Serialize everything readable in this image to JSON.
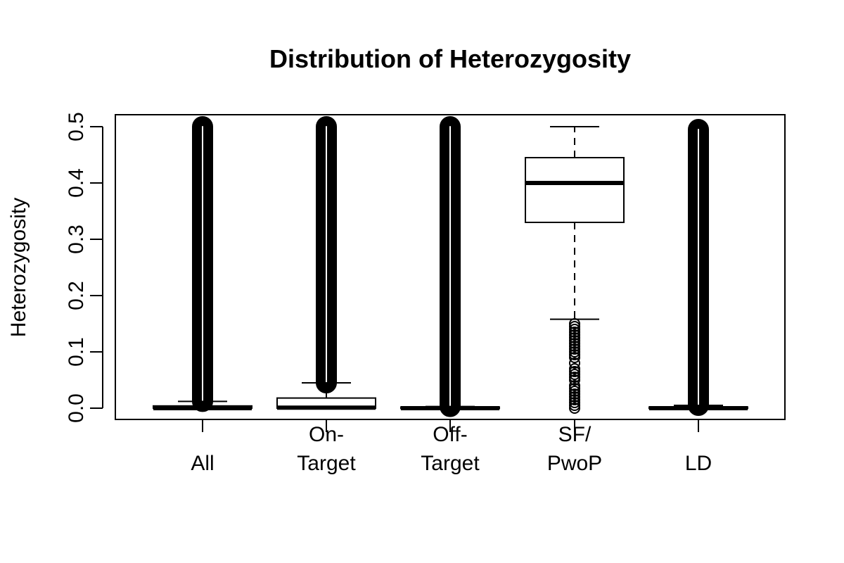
{
  "chart_data": {
    "type": "box",
    "title": "Distribution of Heterozygosity",
    "xlabel": "",
    "ylabel": "Heterozygosity",
    "ylim": [
      -0.02,
      0.52
    ],
    "yticks": [
      0.0,
      0.1,
      0.2,
      0.3,
      0.4,
      0.5
    ],
    "ytick_labels": [
      "0.0",
      "0.1",
      "0.2",
      "0.3",
      "0.4",
      "0.5"
    ],
    "grid": false,
    "legend": "none",
    "categories": [
      "All",
      "On-\nTarget",
      "Off-\nTarget",
      "SF/\nPwoP",
      "LD"
    ],
    "boxes": [
      {
        "q1": 0.0,
        "median": 0.0,
        "q3": 0.004,
        "whisker_low": 0.0,
        "whisker_high": 0.012,
        "outlier_band": [
          0.012,
          0.5
        ]
      },
      {
        "q1": 0.0,
        "median": 0.001,
        "q3": 0.018,
        "whisker_low": 0.0,
        "whisker_high": 0.045,
        "outlier_band": [
          0.045,
          0.5
        ]
      },
      {
        "q1": 0.0,
        "median": 0.0,
        "q3": 0.002,
        "whisker_low": 0.0,
        "whisker_high": 0.003,
        "outlier_band": [
          0.003,
          0.5
        ]
      },
      {
        "q1": 0.33,
        "median": 0.4,
        "q3": 0.445,
        "whisker_low": 0.158,
        "whisker_high": 0.5,
        "outliers": [
          0.0,
          0.005,
          0.01,
          0.015,
          0.02,
          0.025,
          0.03,
          0.035,
          0.04,
          0.05,
          0.055,
          0.06,
          0.065,
          0.07,
          0.08,
          0.09,
          0.095,
          0.1,
          0.105,
          0.11,
          0.115,
          0.12,
          0.125,
          0.13,
          0.135,
          0.14,
          0.145,
          0.15
        ]
      },
      {
        "q1": 0.0,
        "median": 0.0,
        "q3": 0.002,
        "whisker_low": 0.0,
        "whisker_high": 0.005,
        "outlier_band": [
          0.005,
          0.495
        ]
      }
    ]
  }
}
